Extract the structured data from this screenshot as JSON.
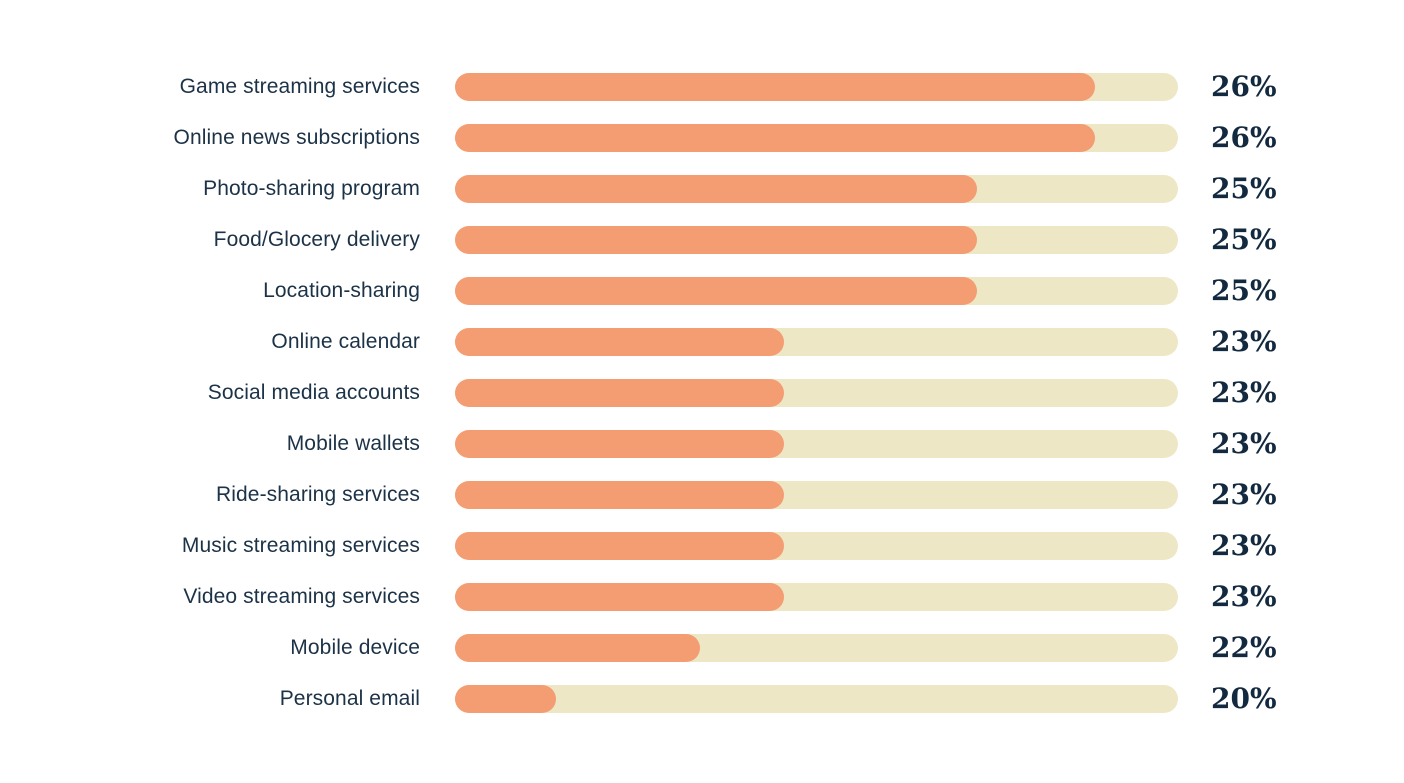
{
  "chart_data": {
    "type": "bar",
    "orientation": "horizontal",
    "title": "",
    "xlabel": "",
    "ylabel": "",
    "grid": false,
    "legend": false,
    "categories": [
      "Game streaming services",
      "Online news subscriptions",
      "Photo-sharing program",
      "Food/Glocery delivery",
      "Location-sharing",
      "Online calendar",
      "Social media accounts",
      "Mobile wallets",
      "Ride-sharing services",
      "Music streaming services",
      "Video streaming services",
      "Mobile device",
      "Personal email"
    ],
    "values": [
      26,
      26,
      25,
      25,
      25,
      23,
      23,
      23,
      23,
      23,
      23,
      22,
      20
    ],
    "value_labels": [
      "26%",
      "26%",
      "25%",
      "25%",
      "25%",
      "23%",
      "23%",
      "23%",
      "23%",
      "23%",
      "23%",
      "22%",
      "20%"
    ],
    "fill_fractions": [
      0.885,
      0.885,
      0.722,
      0.722,
      0.722,
      0.455,
      0.455,
      0.455,
      0.455,
      0.455,
      0.455,
      0.339,
      0.14
    ],
    "colors": {
      "bar_fill": "#F49D73",
      "bar_track": "#EDE7C6",
      "label_text": "#1C3247",
      "value_text": "#13293F",
      "background": "#FFFFFF"
    }
  }
}
